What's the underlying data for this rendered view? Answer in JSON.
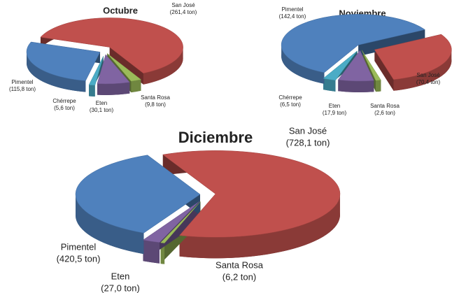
{
  "chart_data": [
    {
      "type": "pie",
      "title": "Octubre",
      "categories": [
        "San José",
        "Santa Rosa",
        "Eten",
        "Chérrepe",
        "Pimentel"
      ],
      "values": [
        261.4,
        9.8,
        30.1,
        5.6,
        115.8
      ],
      "value_labels": [
        "(261,4 ton)",
        "(9,8 ton)",
        "(30,1 ton)",
        "(5,6 ton)",
        "(115,8 ton)"
      ],
      "colors": [
        "#c0504d",
        "#9bbb59",
        "#8064a2",
        "#4bacc6",
        "#4f81bd"
      ]
    },
    {
      "type": "pie",
      "title": "Noviembre",
      "categories": [
        "San José",
        "Santa Rosa",
        "Eten",
        "Chérrepe",
        "Pimentel"
      ],
      "values": [
        70.4,
        2.6,
        17.9,
        6.5,
        142.4
      ],
      "value_labels": [
        "(70,4 ton)",
        "(2,6 ton)",
        "(17,9 ton)",
        "(6,5 ton)",
        "(142,4 ton)"
      ],
      "colors": [
        "#c0504d",
        "#9bbb59",
        "#8064a2",
        "#4bacc6",
        "#4f81bd"
      ]
    },
    {
      "type": "pie",
      "title": "Diciembre",
      "categories": [
        "San José",
        "Santa Rosa",
        "Eten",
        "Pimentel"
      ],
      "values": [
        728.1,
        6.2,
        27.0,
        420.5
      ],
      "value_labels": [
        "(728,1 ton)",
        "(6,2 ton)",
        "(27,0 ton)",
        "(420,5 ton)"
      ],
      "colors": [
        "#c0504d",
        "#9bbb59",
        "#8064a2",
        "#4f81bd"
      ]
    }
  ]
}
